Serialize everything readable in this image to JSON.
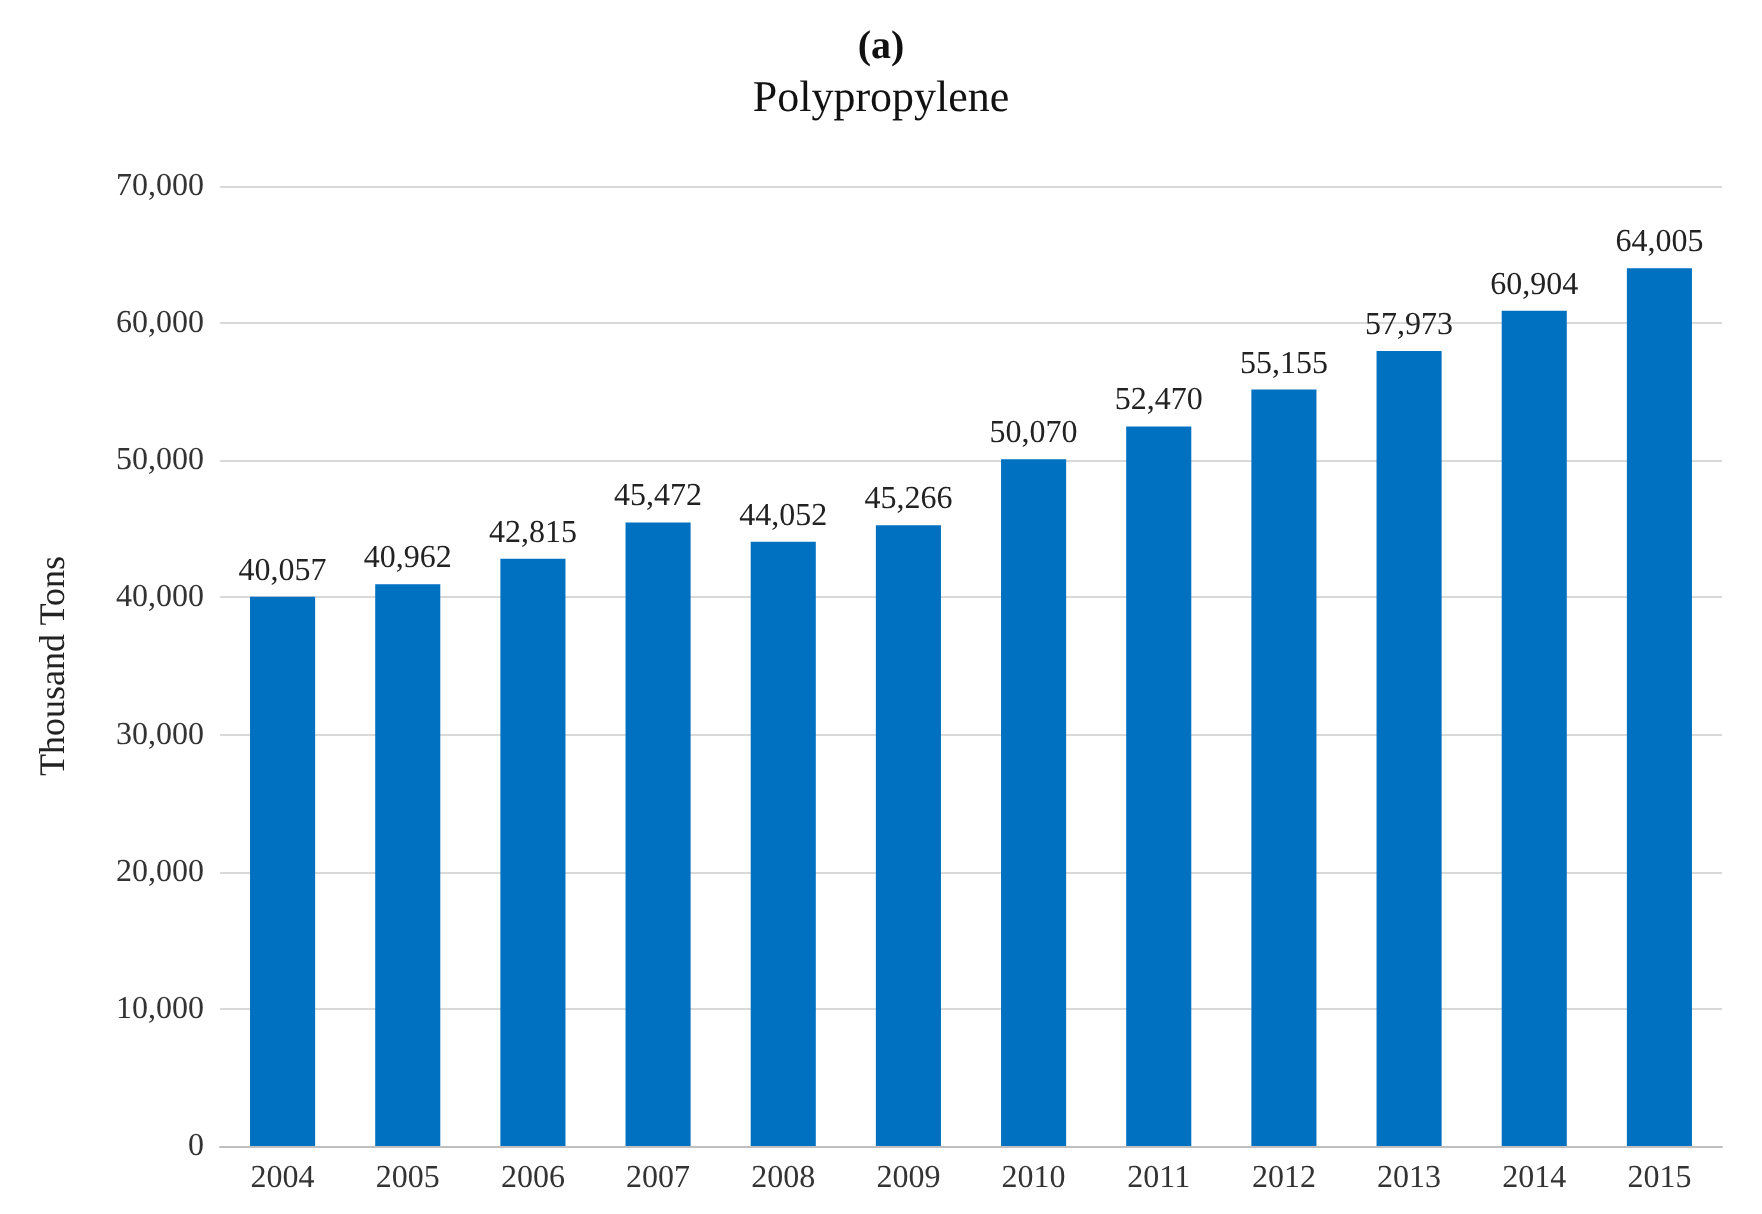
{
  "chart_data": {
    "type": "bar",
    "title": "(a)",
    "subtitle": "Polypropylene",
    "ylabel": "Thousand Tons",
    "categories": [
      "2004",
      "2005",
      "2006",
      "2007",
      "2008",
      "2009",
      "2010",
      "2011",
      "2012",
      "2013",
      "2014",
      "2015"
    ],
    "values": [
      40057,
      40962,
      42815,
      45472,
      44052,
      45266,
      50070,
      52470,
      55155,
      57973,
      60904,
      64005
    ],
    "value_labels": [
      "40,057",
      "40,962",
      "42,815",
      "45,472",
      "44,052",
      "45,266",
      "50,070",
      "52,470",
      "55,155",
      "57,973",
      "60,904",
      "64,005"
    ],
    "color": "#0070c0",
    "ylim": [
      0,
      70000
    ],
    "yticks": [
      0,
      {
        "value": 10000,
        "label": "10,000"
      },
      {
        "value": 20000,
        "label": "20,000"
      },
      {
        "value": 30000,
        "label": "30,000"
      },
      {
        "value": 40000,
        "label": "40,000"
      },
      {
        "value": 50000,
        "label": "50,000"
      },
      {
        "value": 60000,
        "label": "60,000"
      },
      {
        "value": 70000,
        "label": "70,000"
      }
    ],
    "grid": "y"
  }
}
